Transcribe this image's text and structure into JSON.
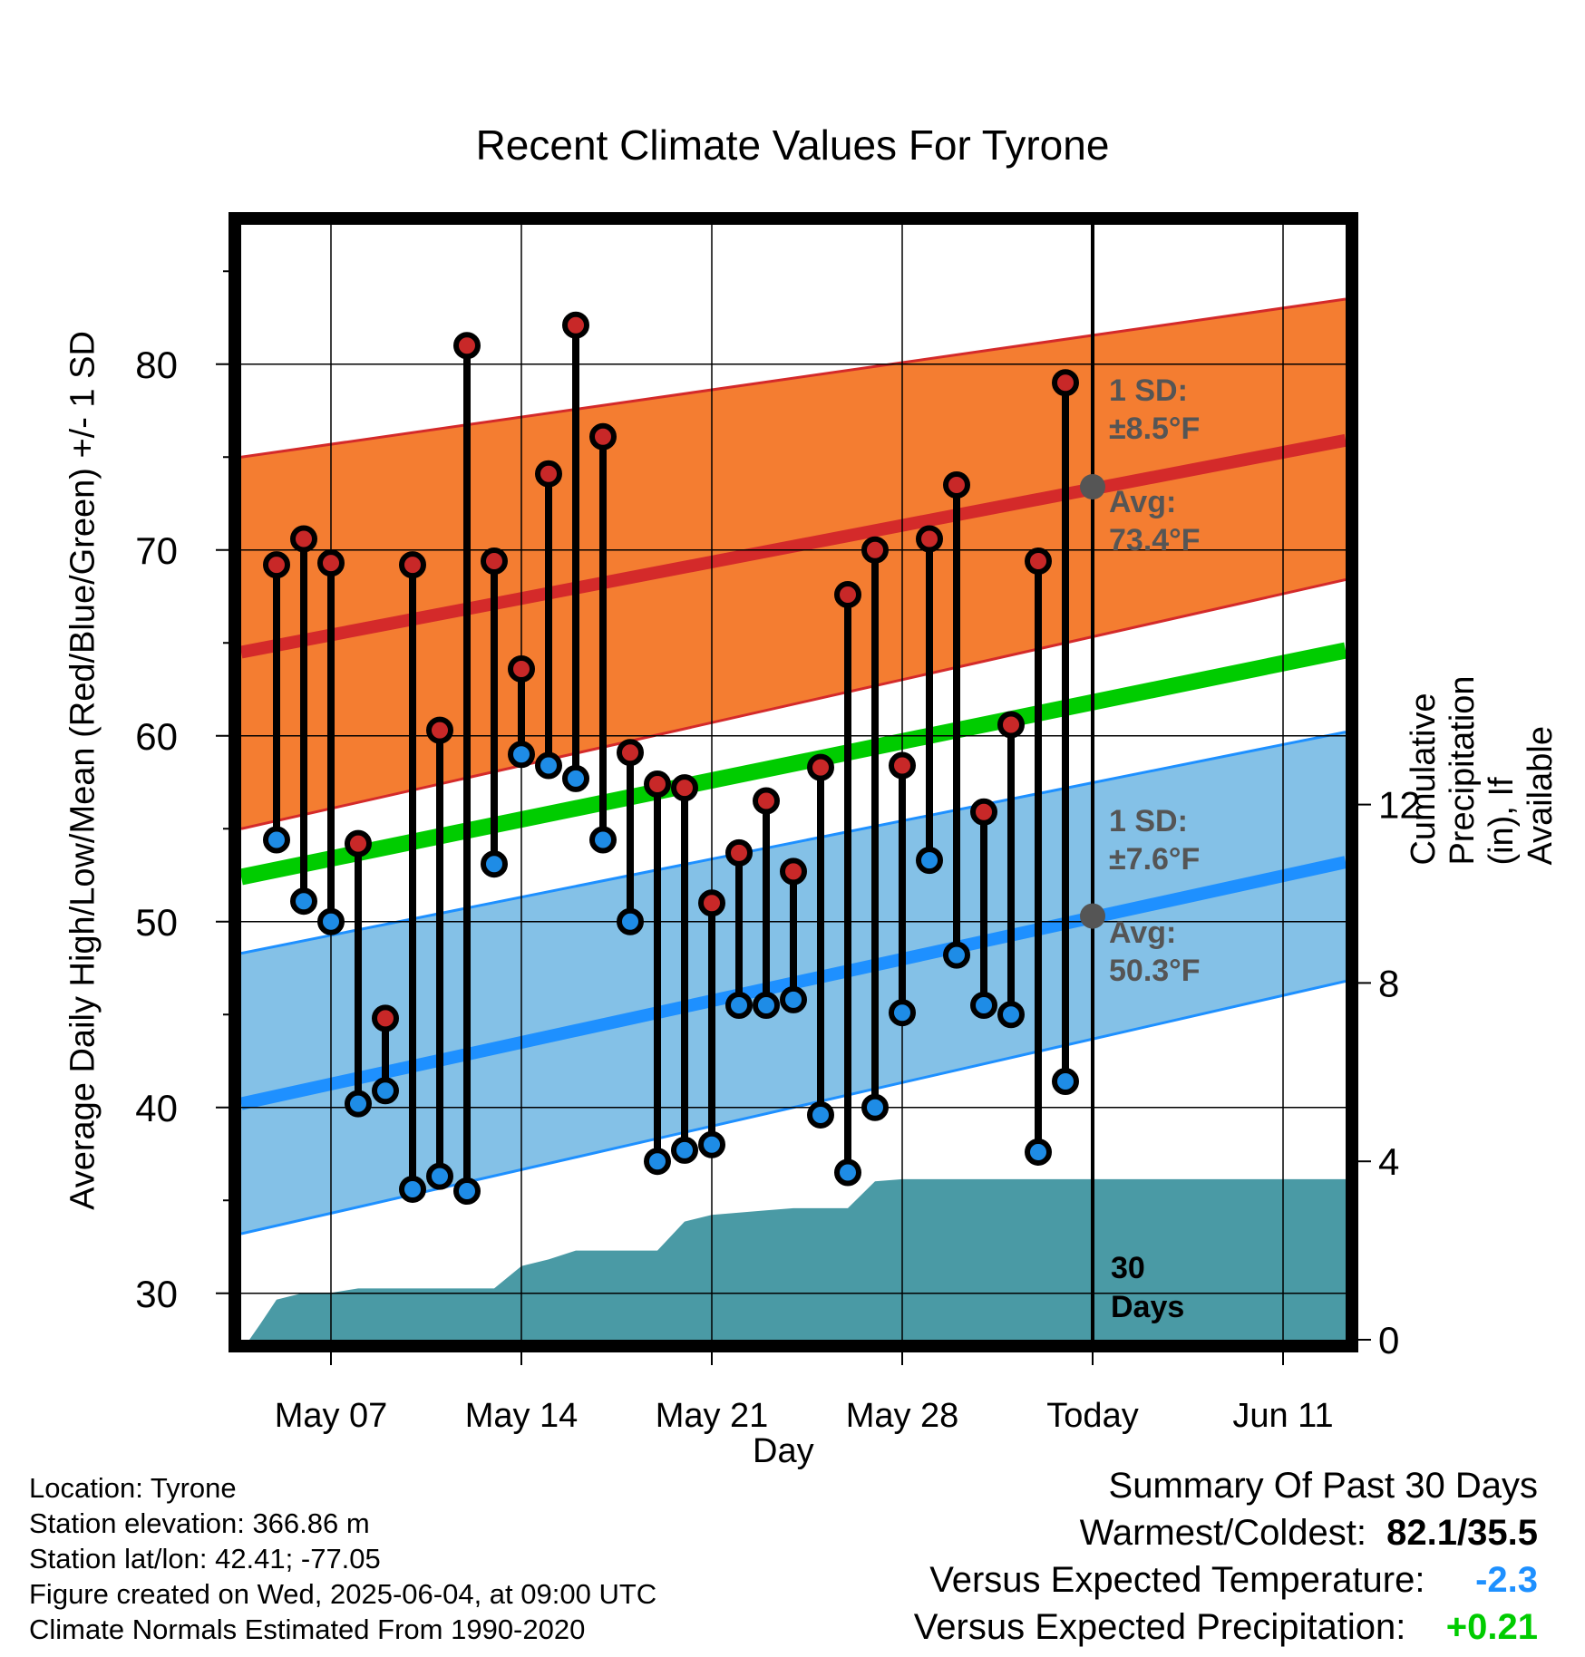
{
  "chart_data": {
    "type": "line",
    "title": "Recent Climate Values For Tyrone",
    "xlabel": "Day",
    "ylabel_left": "Average Daily High/Low/Mean (Red/Blue/Green) +/- 1 SD",
    "ylabel_right": "Cumulative Precipitation (in), If Available",
    "x_ticks": [
      {
        "day": 4,
        "label": "May 07"
      },
      {
        "day": 11,
        "label": "May 14"
      },
      {
        "day": 18,
        "label": "May 21"
      },
      {
        "day": 25,
        "label": "May 28"
      },
      {
        "day": 32,
        "label": "Today"
      },
      {
        "day": 39,
        "label": "Jun 11"
      }
    ],
    "xlim": [
      0.7,
      41.3
    ],
    "ylim_left": [
      27.5,
      87.5
    ],
    "yticks_left": [
      30,
      40,
      50,
      60,
      70,
      80
    ],
    "ylim_right": [
      0,
      25
    ],
    "yticks_right": [
      0,
      4,
      8,
      12
    ],
    "today_day": 32,
    "normals": {
      "high_mean": {
        "start": 64.5,
        "end": 75.9,
        "color": "#d42a2a"
      },
      "high_sd_band": {
        "low_start": 55.0,
        "low_end": 68.4,
        "high_start": 75.0,
        "high_end": 83.5,
        "color": "#f47d31"
      },
      "low_mean": {
        "start": 40.2,
        "end": 53.2,
        "color": "#1e90ff"
      },
      "low_sd_band": {
        "low_start": 33.2,
        "low_end": 46.8,
        "high_start": 48.3,
        "high_end": 60.2,
        "color": "#84c1e7"
      },
      "mean": {
        "start": 52.4,
        "end": 64.6,
        "color": "#00cc00"
      }
    },
    "series": [
      {
        "name": "High",
        "color": "#c82828",
        "values": [
          69.2,
          70.6,
          69.3,
          54.2,
          44.8,
          69.2,
          60.3,
          81.0,
          69.4,
          63.6,
          74.1,
          82.1,
          76.1,
          59.1,
          57.4,
          57.2,
          51.0,
          53.7,
          56.5,
          52.7,
          58.3,
          67.6,
          70.0,
          58.4,
          70.6,
          73.5,
          55.9,
          60.6,
          69.4,
          79.0
        ]
      },
      {
        "name": "Low",
        "color": "#1e8ce6",
        "values": [
          54.4,
          51.1,
          50.0,
          40.2,
          40.9,
          35.6,
          36.3,
          35.5,
          53.1,
          59.0,
          58.4,
          57.7,
          54.4,
          50.0,
          37.1,
          37.7,
          38.0,
          45.5,
          45.5,
          45.8,
          39.6,
          36.5,
          40.0,
          45.1,
          53.3,
          48.2,
          45.5,
          45.0,
          37.6,
          41.4
        ]
      }
    ],
    "days": [
      2,
      3,
      4,
      5,
      6,
      7,
      8,
      9,
      10,
      11,
      12,
      13,
      14,
      15,
      16,
      17,
      18,
      19,
      20,
      21,
      22,
      23,
      24,
      25,
      26,
      27,
      28,
      29,
      30,
      31
    ],
    "precip_cumulative": {
      "color": "#4a9aa5",
      "days": [
        1,
        1.4,
        2,
        3,
        4,
        5,
        6,
        7,
        8,
        9,
        10,
        11,
        12,
        13,
        14,
        15,
        16,
        17,
        18,
        19,
        20,
        21,
        22,
        23,
        24,
        25,
        26,
        27,
        28,
        29,
        30,
        31,
        41.3
      ],
      "values": [
        0,
        0.35,
        0.9,
        1.05,
        1.05,
        1.15,
        1.15,
        1.15,
        1.15,
        1.15,
        1.15,
        1.65,
        1.8,
        2.0,
        2.0,
        2.0,
        2.0,
        2.65,
        2.8,
        2.85,
        2.9,
        2.95,
        2.95,
        2.95,
        3.55,
        3.6,
        3.6,
        3.6,
        3.6,
        3.6,
        3.6,
        3.6,
        3.6
      ]
    },
    "annotations": {
      "high_sd_label": "1 SD:",
      "high_sd_value": "±8.5°F",
      "high_avg_label": "Avg:",
      "high_avg_value": "73.4°F",
      "high_avg_today": 73.4,
      "low_sd_label": "1 SD:",
      "low_sd_value": "±7.6°F",
      "low_avg_label": "Avg:",
      "low_avg_value": "50.3°F",
      "low_avg_today": 50.3,
      "days_num": "30",
      "days_word": "Days"
    }
  },
  "info": {
    "location": "Location: Tyrone",
    "elevation": "Station elevation: 366.86 m",
    "latlon": "Station lat/lon: 42.41; -77.05",
    "created": "Figure created on Wed, 2025-06-04, at 09:00 UTC",
    "normals": "Climate Normals Estimated From 1990-2020"
  },
  "summary": {
    "heading": "Summary Of Past 30 Days",
    "warm_cold_label": "Warmest/Coldest:",
    "warm_cold_value": "82.1/35.5",
    "temp_label": "Versus Expected Temperature:",
    "temp_value": "-2.3",
    "temp_color": "#1e90ff",
    "precip_label": "Versus Expected Precipitation:",
    "precip_value": "+0.21",
    "precip_color": "#00cc00"
  }
}
